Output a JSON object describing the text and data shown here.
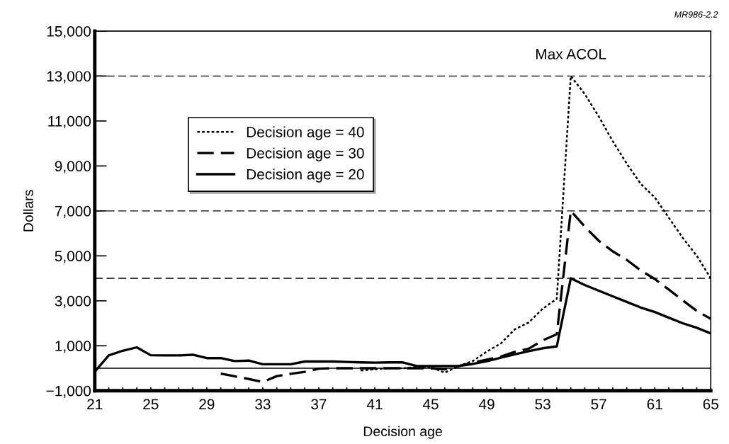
{
  "chart_data": {
    "type": "line",
    "xlabel": "Decision age",
    "ylabel": "Dollars",
    "xlim": [
      21,
      65
    ],
    "ylim": [
      -1000,
      15000
    ],
    "xticks": [
      21,
      {
        "value": 22,
        "label": null
      },
      {
        "value": 23,
        "label": null
      },
      {
        "value": 24,
        "label": null
      },
      25,
      {
        "value": 26,
        "label": null
      },
      {
        "value": 27,
        "label": null
      },
      {
        "value": 28,
        "label": null
      },
      29,
      {
        "value": 30,
        "label": null
      },
      {
        "value": 31,
        "label": null
      },
      {
        "value": 32,
        "label": null
      },
      33,
      {
        "value": 34,
        "label": null
      },
      {
        "value": 35,
        "label": null
      },
      {
        "value": 36,
        "label": null
      },
      37,
      {
        "value": 38,
        "label": null
      },
      {
        "value": 39,
        "label": null
      },
      {
        "value": 40,
        "label": null
      },
      41,
      {
        "value": 42,
        "label": null
      },
      {
        "value": 43,
        "label": null
      },
      {
        "value": 44,
        "label": null
      },
      45,
      {
        "value": 46,
        "label": null
      },
      {
        "value": 47,
        "label": null
      },
      {
        "value": 48,
        "label": null
      },
      49,
      {
        "value": 50,
        "label": null
      },
      {
        "value": 51,
        "label": null
      },
      {
        "value": 52,
        "label": null
      },
      53,
      {
        "value": 54,
        "label": null
      },
      {
        "value": 55,
        "label": null
      },
      {
        "value": 56,
        "label": null
      },
      57,
      {
        "value": 58,
        "label": null
      },
      {
        "value": 59,
        "label": null
      },
      {
        "value": 60,
        "label": null
      },
      61,
      {
        "value": 62,
        "label": null
      },
      {
        "value": 63,
        "label": null
      },
      {
        "value": 64,
        "label": null
      },
      65
    ],
    "yticks": [
      {
        "value": -1000,
        "label": "−1,000"
      },
      {
        "value": 1000,
        "label": "1,000"
      },
      {
        "value": 3000,
        "label": "3,000"
      },
      {
        "value": 5000,
        "label": "5,000"
      },
      {
        "value": 7000,
        "label": "7,000"
      },
      {
        "value": 9000,
        "label": "9,000"
      },
      {
        "value": 11000,
        "label": "11,000"
      },
      {
        "value": 13000,
        "label": "13,000"
      },
      {
        "value": 15000,
        "label": "15,000"
      }
    ],
    "legend": "top left",
    "series": [
      {
        "name": "Decision age = 40",
        "color": "#000000",
        "line_style": "dotted",
        "x": [
          40,
          41,
          42,
          43,
          44,
          45,
          46,
          47,
          48,
          49,
          50,
          51,
          52,
          53,
          54,
          55,
          56,
          57,
          58,
          59,
          60,
          61,
          62,
          63,
          64,
          65
        ],
        "values": [
          -100,
          -50,
          0,
          0,
          50,
          50,
          -200,
          100,
          320,
          740,
          1100,
          1730,
          2040,
          2650,
          3090,
          13000,
          12200,
          11200,
          10100,
          9100,
          8200,
          7600,
          6700,
          5800,
          5000,
          4000
        ]
      },
      {
        "name": "Decision age = 30",
        "color": "#000000",
        "line_style": "dashed",
        "x": [
          30,
          31,
          32,
          33,
          34,
          35,
          36,
          37,
          38,
          39,
          40,
          41,
          42,
          43,
          44,
          45,
          46,
          47,
          48,
          49,
          50,
          51,
          52,
          53,
          54,
          55,
          56,
          57,
          58,
          59,
          60,
          61,
          62,
          63,
          64,
          65
        ],
        "values": [
          -240,
          -360,
          -480,
          -610,
          -350,
          -250,
          -160,
          -20,
          0,
          0,
          0,
          0,
          0,
          0,
          0,
          0,
          -50,
          100,
          250,
          380,
          520,
          730,
          870,
          1240,
          1510,
          7000,
          6300,
          5670,
          5200,
          4820,
          4350,
          3970,
          3500,
          3020,
          2550,
          2200
        ]
      },
      {
        "name": "Decision age = 20",
        "color": "#000000",
        "line_style": "solid",
        "x": [
          21,
          22,
          23,
          24,
          25,
          26,
          27,
          28,
          29,
          30,
          31,
          32,
          33,
          34,
          35,
          36,
          37,
          38,
          39,
          40,
          41,
          42,
          43,
          44,
          45,
          46,
          47,
          48,
          49,
          50,
          51,
          52,
          53,
          54,
          55,
          56,
          57,
          58,
          59,
          60,
          61,
          62,
          63,
          64,
          65
        ],
        "values": [
          -150,
          570,
          780,
          930,
          580,
          570,
          570,
          600,
          450,
          450,
          320,
          340,
          180,
          180,
          180,
          300,
          300,
          300,
          280,
          260,
          250,
          260,
          260,
          100,
          100,
          100,
          100,
          190,
          315,
          470,
          620,
          760,
          890,
          970,
          4000,
          3700,
          3450,
          3200,
          2950,
          2700,
          2500,
          2250,
          2000,
          1800,
          1550
        ]
      }
    ],
    "ref_lines": [
      {
        "axis": "y",
        "value": 0,
        "line_style": "solid"
      },
      {
        "axis": "y",
        "value": 13000,
        "line_style": "dashed"
      },
      {
        "axis": "y",
        "value": 7000,
        "line_style": "dashed"
      },
      {
        "axis": "y",
        "value": 4000,
        "line_style": "dashed"
      }
    ],
    "annotations": [
      {
        "text": "Max ACOL",
        "x": 55,
        "y": 13000
      },
      "MR986-2.2"
    ]
  }
}
